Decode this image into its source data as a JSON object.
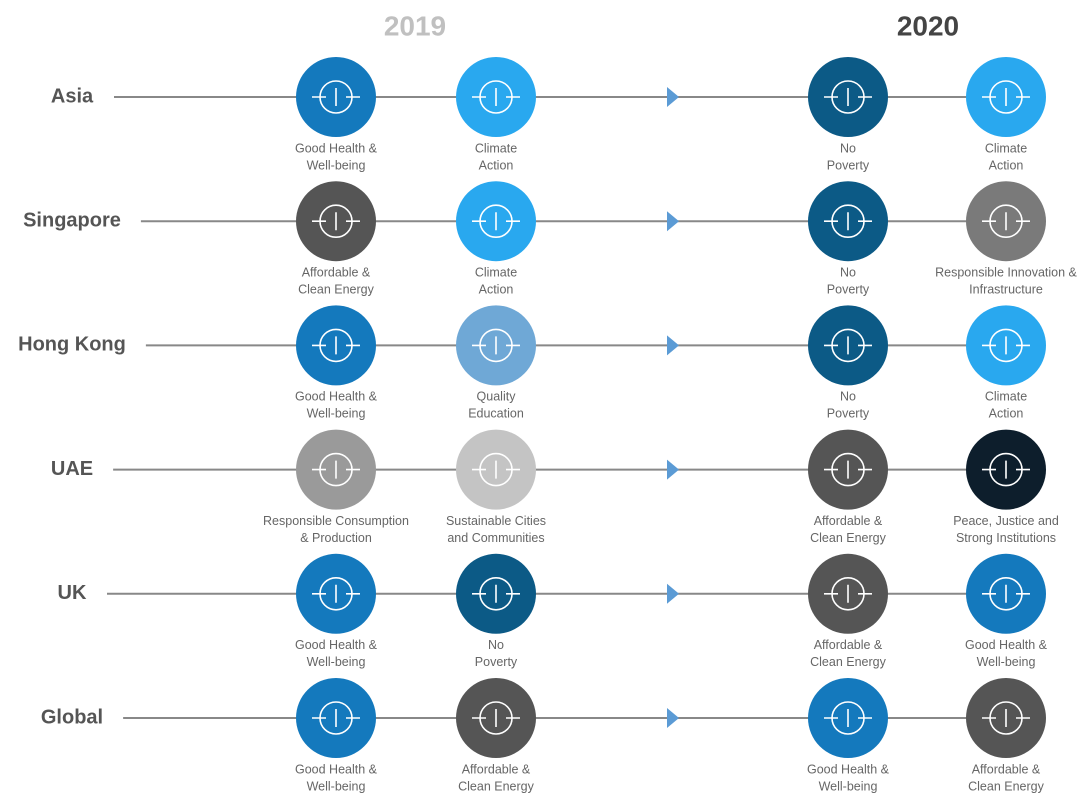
{
  "headers": [
    {
      "text": "2019",
      "color": "#c0c0c0"
    },
    {
      "text": "2020",
      "color": "#444444"
    }
  ],
  "rows": [
    {
      "region": "Asia",
      "goals": [
        {
          "lines": [
            "Good Health &",
            "Well-being"
          ],
          "color": "#1479bd"
        },
        {
          "lines": [
            "Climate",
            "Action"
          ],
          "color": "#29a8ef"
        },
        {
          "lines": [
            "No",
            "Poverty"
          ],
          "color": "#0c5a86"
        },
        {
          "lines": [
            "Climate",
            "Action"
          ],
          "color": "#29a8ef"
        }
      ]
    },
    {
      "region": "Singapore",
      "goals": [
        {
          "lines": [
            "Affordable &",
            "Clean Energy"
          ],
          "color": "#555555"
        },
        {
          "lines": [
            "Climate",
            "Action"
          ],
          "color": "#29a8ef"
        },
        {
          "lines": [
            "No",
            "Poverty"
          ],
          "color": "#0c5a86"
        },
        {
          "lines": [
            "Responsible Innovation &",
            "Infrastructure"
          ],
          "color": "#7a7a7a"
        }
      ]
    },
    {
      "region": "Hong Kong",
      "goals": [
        {
          "lines": [
            "Good Health &",
            "Well-being"
          ],
          "color": "#1479bd"
        },
        {
          "lines": [
            "Quality",
            "Education"
          ],
          "color": "#6fa8d6"
        },
        {
          "lines": [
            "No",
            "Poverty"
          ],
          "color": "#0c5a86"
        },
        {
          "lines": [
            "Climate",
            "Action"
          ],
          "color": "#29a8ef"
        }
      ]
    },
    {
      "region": "UAE",
      "goals": [
        {
          "lines": [
            "Responsible Consumption",
            "& Production"
          ],
          "color": "#9a9a9a"
        },
        {
          "lines": [
            "Sustainable Cities",
            "and Communities"
          ],
          "color": "#c4c4c4"
        },
        {
          "lines": [
            "Affordable &",
            "Clean Energy"
          ],
          "color": "#555555"
        },
        {
          "lines": [
            "Peace, Justice and",
            "Strong Institutions"
          ],
          "color": "#0d1e2c"
        }
      ]
    },
    {
      "region": "UK",
      "goals": [
        {
          "lines": [
            "Good Health &",
            "Well-being"
          ],
          "color": "#1479bd"
        },
        {
          "lines": [
            "No",
            "Poverty"
          ],
          "color": "#0c5a86"
        },
        {
          "lines": [
            "Affordable &",
            "Clean Energy"
          ],
          "color": "#555555"
        },
        {
          "lines": [
            "Good Health &",
            "Well-being"
          ],
          "color": "#1479bd"
        }
      ]
    },
    {
      "region": "Global",
      "goals": [
        {
          "lines": [
            "Good Health &",
            "Well-being"
          ],
          "color": "#1479bd"
        },
        {
          "lines": [
            "Affordable &",
            "Clean Energy"
          ],
          "color": "#555555"
        },
        {
          "lines": [
            "Good Health &",
            "Well-being"
          ],
          "color": "#1479bd"
        },
        {
          "lines": [
            "Affordable &",
            "Clean Energy"
          ],
          "color": "#555555"
        }
      ]
    }
  ]
}
